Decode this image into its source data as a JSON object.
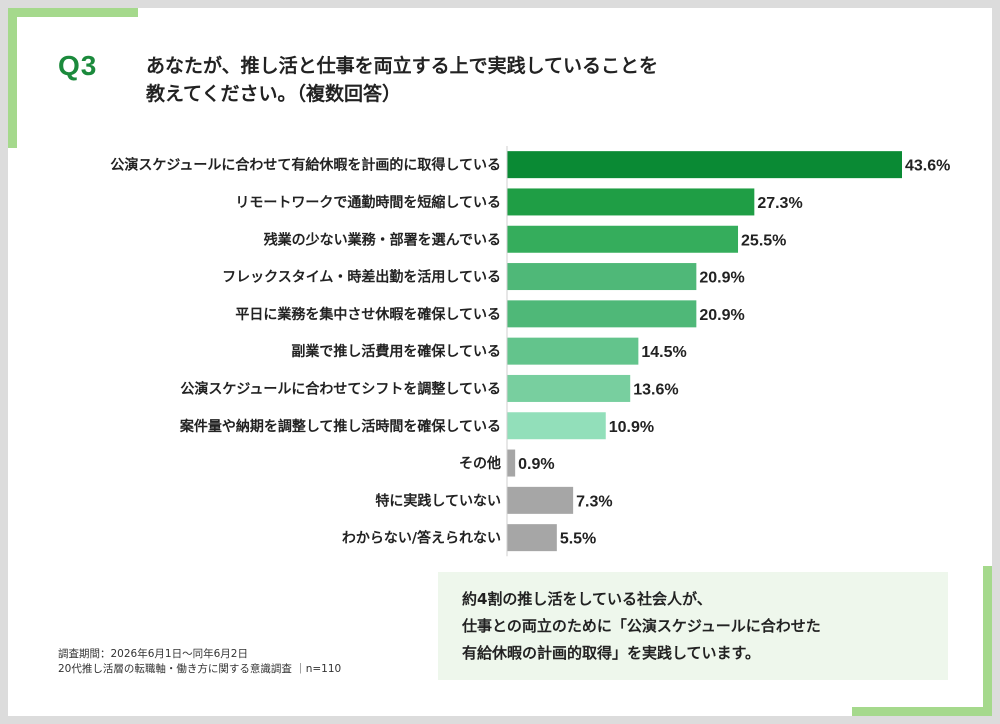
{
  "question": {
    "number": "Q3",
    "text_line1": "あなたが、推し活と仕事を両立する上で実践していることを",
    "text_line2": "教えてください。（複数回答）"
  },
  "chart_data": {
    "type": "bar",
    "orientation": "horizontal",
    "categories": [
      "公演スケジュールに合わせて有給休暇を計画的に取得している",
      "リモートワークで通勤時間を短縮している",
      "残業の少ない業務・部署を選んでいる",
      "フレックスタイム・時差出勤を活用している",
      "平日に業務を集中させ休暇を確保している",
      "副業で推し活費用を確保している",
      "公演スケジュールに合わせてシフトを調整している",
      "案件量や納期を調整して推し活時間を確保している",
      "その他",
      "特に実践していない",
      "わからない/答えられない"
    ],
    "values": [
      43.6,
      27.3,
      25.5,
      20.9,
      20.9,
      14.5,
      13.6,
      10.9,
      0.9,
      7.3,
      5.5
    ],
    "value_labels": [
      "43.6%",
      "27.3%",
      "25.5%",
      "20.9%",
      "20.9%",
      "14.5%",
      "13.6%",
      "10.9%",
      "0.9%",
      "7.3%",
      "5.5%"
    ],
    "colors": [
      "#0a8a34",
      "#1f9e45",
      "#35ad5c",
      "#4fb878",
      "#4fb878",
      "#63c48c",
      "#78cf9f",
      "#92dfba",
      "#a6a6a6",
      "#a6a6a6",
      "#a6a6a6"
    ],
    "xlim": [
      0,
      43.6
    ],
    "grid": false,
    "legend": "none"
  },
  "footnote": {
    "line1": "調査期間：2026年6月1日～同年6月2日",
    "line2": "20代推し活層の転職軸・働き方に関する意識調査 ｜n=110"
  },
  "summary": {
    "line1": "約4割の推し活をしている社会人が、",
    "line2": "仕事との両立のために「公演スケジュールに合わせた",
    "line3": "有給休暇の計画的取得」を実践しています。"
  },
  "colors": {
    "accent": "#1b8a3c",
    "decor": "#a5d98c",
    "summary_bg": "#eef7ec"
  }
}
